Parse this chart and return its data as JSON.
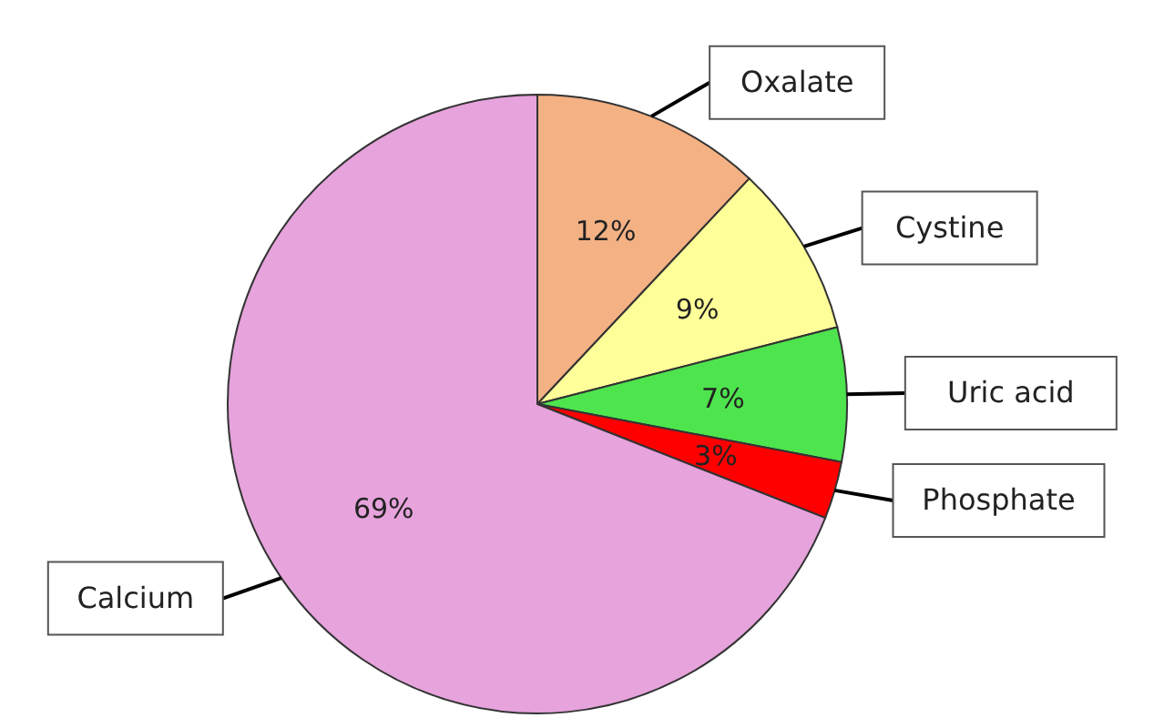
{
  "chart_data": {
    "type": "pie",
    "categories": [
      "Oxalate",
      "Cystine",
      "Uric acid",
      "Phosphate",
      "Calcium"
    ],
    "values": [
      12,
      9,
      7,
      3,
      69
    ],
    "colors": [
      "#f4b183",
      "#ffff99",
      "#4ee44e",
      "#ff0000",
      "#e6a3dc"
    ],
    "value_labels": [
      "12%",
      "9%",
      "7%",
      "3%",
      "69%"
    ]
  }
}
